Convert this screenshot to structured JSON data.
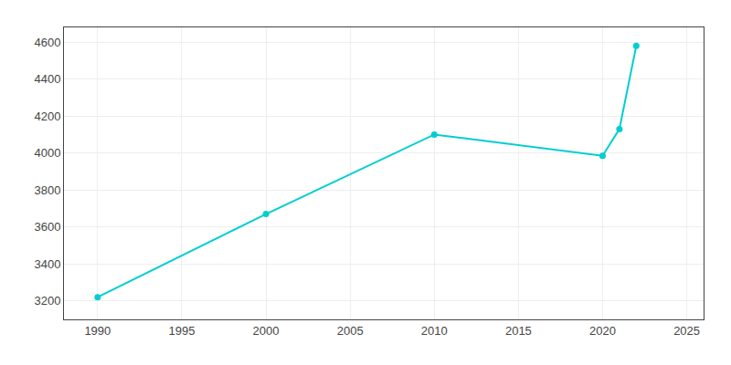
{
  "chart_data": {
    "type": "line",
    "x": [
      1990,
      2000,
      2010,
      2020,
      2021,
      2022
    ],
    "values": [
      3220,
      3670,
      4100,
      3985,
      4130,
      4580
    ],
    "color": "#00CED1",
    "marker": "circle",
    "line_style": "solid",
    "xlim": [
      1988,
      2026
    ],
    "ylim": [
      3100,
      4680
    ],
    "xticks": [
      1990,
      1995,
      2000,
      2005,
      2010,
      2015,
      2020,
      2025
    ],
    "yticks": [
      3200,
      3400,
      3600,
      3800,
      4000,
      4200,
      4400,
      4600
    ],
    "grid": true
  }
}
